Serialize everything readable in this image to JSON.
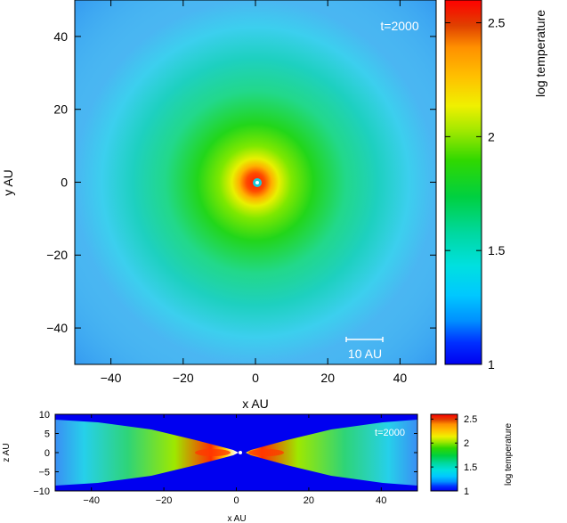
{
  "chart_data": [
    {
      "type": "heatmap",
      "title": "",
      "xlabel": "x AU",
      "ylabel": "y AU",
      "xlim": [
        -50,
        50
      ],
      "ylim": [
        -50,
        50
      ],
      "x_ticks": [
        -40,
        -20,
        0,
        20,
        40
      ],
      "y_ticks": [
        -40,
        -20,
        0,
        20,
        40
      ],
      "annotation": "t=2000",
      "scale_bar": {
        "label": "10 AU",
        "length": 10
      },
      "colorbar": {
        "label": "log temperature",
        "range": [
          1,
          2.6
        ],
        "ticks": [
          1,
          1.5,
          2,
          2.5
        ]
      }
    },
    {
      "type": "heatmap",
      "title": "",
      "xlabel": "x AU",
      "ylabel": "z AU",
      "xlim": [
        -50,
        50
      ],
      "ylim": [
        -10,
        10
      ],
      "x_ticks": [
        -40,
        -20,
        0,
        20,
        40
      ],
      "y_ticks": [
        -10,
        -5,
        0,
        5,
        10
      ],
      "annotation": "t=2000",
      "colorbar": {
        "label": "log temperature",
        "range": [
          1,
          2.6
        ],
        "ticks": [
          1,
          1.5,
          2,
          2.5
        ]
      }
    }
  ]
}
